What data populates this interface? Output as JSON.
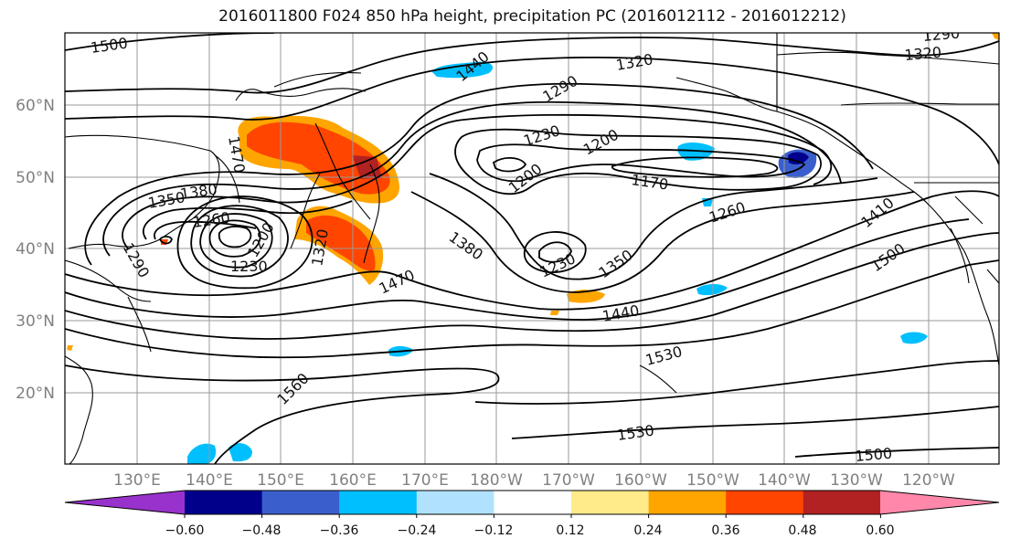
{
  "title": "2016011800 F024 850 hPa height, precipitation PC (2016012112 - 2016012212)",
  "lat_labels": [
    "60°N",
    "50°N",
    "40°N",
    "30°N",
    "20°N"
  ],
  "lon_labels": [
    "130°E",
    "140°E",
    "150°E",
    "160°E",
    "170°E",
    "180°W",
    "170°W",
    "160°W",
    "150°W",
    "140°W",
    "130°W",
    "120°W"
  ],
  "contour_labels": [
    "1500",
    "1470",
    "1440",
    "1320",
    "1290",
    "1230",
    "1200",
    "1170",
    "1200",
    "1260",
    "1410",
    "1500",
    "1350",
    "1380",
    "1260",
    "1290",
    "1230",
    "1200",
    "1320",
    "1470",
    "1380",
    "1230",
    "1350",
    "1440",
    "1530",
    "1560",
    "1530",
    "1500",
    "1290",
    "1320"
  ],
  "colorbar": {
    "ticks": [
      "−0.60",
      "−0.48",
      "−0.36",
      "−0.24",
      "−0.12",
      "0.12",
      "0.24",
      "0.36",
      "0.48",
      "0.60"
    ],
    "colors": [
      "#9932cc",
      "#00008b",
      "#3a5fcd",
      "#00bfff",
      "#b0e2ff",
      "#ffffff",
      "#ffeb8a",
      "#ffa500",
      "#ff4500",
      "#b22222",
      "#ff88aa"
    ]
  },
  "legend": {
    "units": ""
  }
}
